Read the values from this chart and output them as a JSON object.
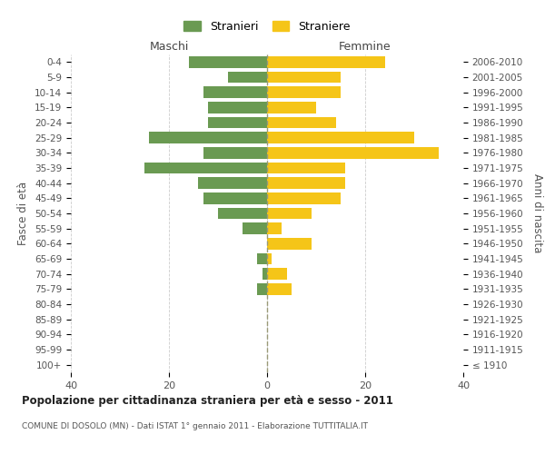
{
  "age_groups": [
    "100+",
    "95-99",
    "90-94",
    "85-89",
    "80-84",
    "75-79",
    "70-74",
    "65-69",
    "60-64",
    "55-59",
    "50-54",
    "45-49",
    "40-44",
    "35-39",
    "30-34",
    "25-29",
    "20-24",
    "15-19",
    "10-14",
    "5-9",
    "0-4"
  ],
  "birth_years": [
    "≤ 1910",
    "1911-1915",
    "1916-1920",
    "1921-1925",
    "1926-1930",
    "1931-1935",
    "1936-1940",
    "1941-1945",
    "1946-1950",
    "1951-1955",
    "1956-1960",
    "1961-1965",
    "1966-1970",
    "1971-1975",
    "1976-1980",
    "1981-1985",
    "1986-1990",
    "1991-1995",
    "1996-2000",
    "2001-2005",
    "2006-2010"
  ],
  "maschi": [
    0,
    0,
    0,
    0,
    0,
    2,
    1,
    2,
    0,
    5,
    10,
    13,
    14,
    25,
    13,
    24,
    12,
    12,
    13,
    8,
    16
  ],
  "femmine": [
    0,
    0,
    0,
    0,
    0,
    5,
    4,
    1,
    9,
    3,
    9,
    15,
    16,
    16,
    35,
    30,
    14,
    10,
    15,
    15,
    24
  ],
  "maschi_color": "#6a9a52",
  "femmine_color": "#f5c518",
  "title": "Popolazione per cittadinanza straniera per età e sesso - 2011",
  "subtitle": "COMUNE DI DOSOLO (MN) - Dati ISTAT 1° gennaio 2011 - Elaborazione TUTTITALIA.IT",
  "ylabel_left": "Fasce di età",
  "ylabel_right": "Anni di nascita",
  "xlabel_left": "Maschi",
  "xlabel_right": "Femmine",
  "legend_stranieri": "Stranieri",
  "legend_straniere": "Straniere",
  "xlim": 40,
  "background_color": "#ffffff",
  "grid_color": "#cccccc"
}
